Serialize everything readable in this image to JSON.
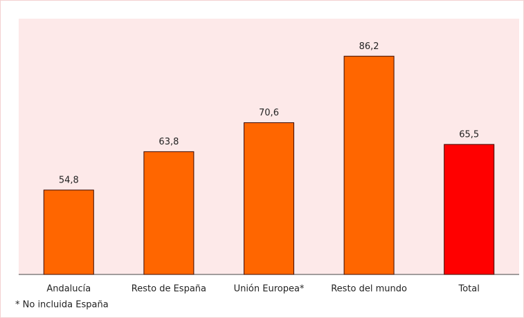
{
  "chart_data": {
    "type": "bar",
    "categories": [
      "Andalucía",
      "Resto de España",
      "Unión Europea*",
      "Resto del mundo",
      "Total"
    ],
    "values": [
      54.8,
      63.8,
      70.6,
      86.2,
      65.5
    ],
    "value_labels": [
      "54,8",
      "63,8",
      "70,6",
      "86,2",
      "65,5"
    ],
    "colors": [
      "#ff6600",
      "#ff6600",
      "#ff6600",
      "#ff6600",
      "#ff0000"
    ],
    "ylim": [
      35,
      95
    ],
    "footnote": "* No incluida España"
  }
}
